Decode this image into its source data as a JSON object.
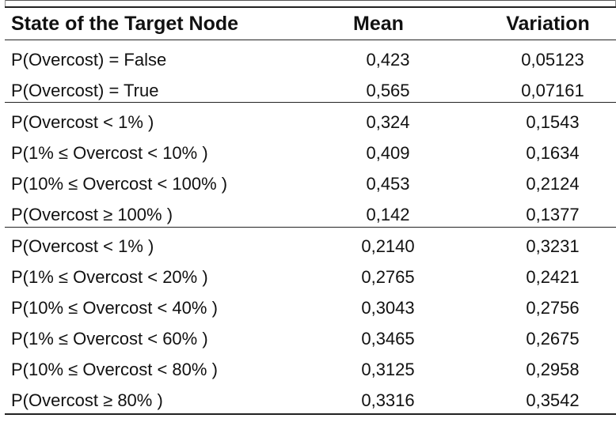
{
  "table": {
    "columns": [
      "State of the Target Node",
      "Mean",
      "Variation"
    ],
    "groups": [
      {
        "rows": [
          {
            "state": "P(Overcost) = False",
            "mean": "0,423",
            "variation": "0,05123"
          },
          {
            "state": "P(Overcost) = True",
            "mean": "0,565",
            "variation": "0,07161"
          }
        ]
      },
      {
        "rows": [
          {
            "state": "P(Overcost < 1% )",
            "mean": "0,324",
            "variation": "0,1543"
          },
          {
            "state": "P(1% ≤ Overcost < 10% )",
            "mean": "0,409",
            "variation": "0,1634"
          },
          {
            "state": "P(10% ≤ Overcost < 100% )",
            "mean": "0,453",
            "variation": "0,2124"
          },
          {
            "state": "P(Overcost ≥ 100% )",
            "mean": "0,142",
            "variation": "0,1377"
          }
        ]
      },
      {
        "rows": [
          {
            "state": "P(Overcost < 1% )",
            "mean": "0,2140",
            "variation": "0,3231"
          },
          {
            "state": "P(1% ≤ Overcost < 20% )",
            "mean": "0,2765",
            "variation": "0,2421"
          },
          {
            "state": "P(10% ≤ Overcost < 40% )",
            "mean": "0,3043",
            "variation": "0,2756"
          },
          {
            "state": "P(1% ≤ Overcost < 60% )",
            "mean": "0,3465",
            "variation": "0,2675"
          },
          {
            "state": "P(10% ≤ Overcost < 80% )",
            "mean": "0,3125",
            "variation": "0,2958"
          },
          {
            "state": "P(Overcost ≥ 80% )",
            "mean": "0,3316",
            "variation": "0,3542"
          }
        ]
      }
    ]
  }
}
